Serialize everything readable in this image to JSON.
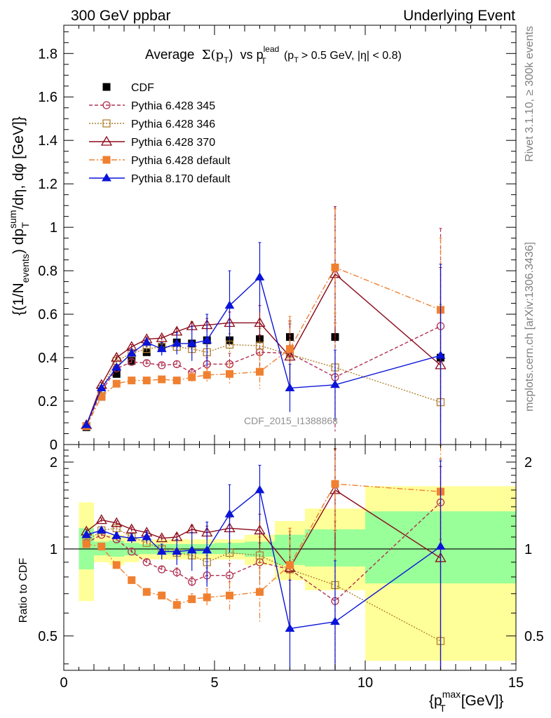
{
  "header": {
    "left": "300 GeV ppbar",
    "right": "Underlying Event"
  },
  "side_notes": {
    "rivet": "Rivet 3.1.10, ≥ 300k events",
    "mcplots": "mcplots.cern.ch [arXiv:1306.3436]"
  },
  "chart_data": [
    {
      "type": "line",
      "title": "Average Σ(pT) vs pT^lead (pT > 0.5 GeV, |η| < 0.8)",
      "title_parts": {
        "main": "Average",
        "sigma": "Σ(p",
        "sub_T": "T",
        "close": ")",
        "vs": "vs p",
        "lead_sup": "lead",
        "cut": "(p",
        "cut_rest": "> 0.5 GeV, |η| < 0.8)"
      },
      "ylabel": "{(1/Nevents) dpT^sum/dη, dφ [GeV]}",
      "ylabel_parts": {
        "a": "{(1/N",
        "events": "events",
        "b": ") dp",
        "sum": "sum",
        "T": "T",
        "c": "/dη, dφ [GeV]}"
      },
      "watermark": "CDF_2015_I1388868",
      "xlim": [
        0,
        15
      ],
      "ylim": [
        0,
        1.93
      ],
      "y_ticks": [
        "0",
        "0.2",
        "0.4",
        "0.6",
        "0.8",
        "1",
        "1.2",
        "1.4",
        "1.6",
        "1.8"
      ],
      "y_tick_values": [
        0,
        0.2,
        0.4,
        0.6,
        0.8,
        1.0,
        1.2,
        1.4,
        1.6,
        1.8
      ],
      "legend_position": "top-left",
      "series": [
        {
          "name": "CDF",
          "color": "#000000",
          "marker": "filled-square",
          "line": "none",
          "x": [
            0.75,
            1.25,
            1.75,
            2.25,
            2.75,
            3.25,
            3.75,
            4.25,
            4.75,
            5.5,
            6.5,
            7.5,
            9.0,
            12.5
          ],
          "y": [
            0.08,
            0.22,
            0.325,
            0.385,
            0.425,
            0.45,
            0.47,
            0.465,
            0.48,
            0.48,
            0.485,
            0.495,
            0.495,
            0.4
          ]
        },
        {
          "name": "Pythia 6.428 345",
          "color": "#b03050",
          "marker": "open-circle",
          "line": "dashed",
          "x": [
            0.75,
            1.25,
            1.75,
            2.25,
            2.75,
            3.25,
            3.75,
            4.25,
            4.75,
            5.5,
            6.5,
            7.5,
            9.0,
            12.5
          ],
          "y": [
            0.085,
            0.245,
            0.35,
            0.38,
            0.375,
            0.365,
            0.37,
            0.33,
            0.37,
            0.37,
            0.425,
            0.42,
            0.31,
            0.545
          ],
          "err": [
            0.01,
            0.01,
            0.01,
            0.01,
            0.01,
            0.01,
            0.015,
            0.02,
            0.03,
            0.05,
            0.08,
            0.15,
            0.25,
            0.45
          ]
        },
        {
          "name": "Pythia 6.428 346",
          "color": "#b08030",
          "marker": "open-square",
          "line": "dotted",
          "x": [
            0.75,
            1.25,
            1.75,
            2.25,
            2.75,
            3.25,
            3.75,
            4.25,
            4.75,
            5.5,
            6.5,
            7.5,
            9.0,
            12.5
          ],
          "y": [
            0.085,
            0.255,
            0.385,
            0.42,
            0.44,
            0.45,
            0.45,
            0.44,
            0.425,
            0.46,
            0.455,
            0.415,
            0.355,
            0.195
          ],
          "err": [
            0.01,
            0.01,
            0.01,
            0.01,
            0.01,
            0.01,
            0.015,
            0.02,
            0.03,
            0.05,
            0.08,
            0.15,
            0.25,
            0.45
          ]
        },
        {
          "name": "Pythia 6.428 370",
          "color": "#8b0a1a",
          "marker": "open-triangle",
          "line": "solid",
          "x": [
            0.75,
            1.25,
            1.75,
            2.25,
            2.75,
            3.25,
            3.75,
            4.25,
            4.75,
            5.5,
            6.5,
            7.5,
            9.0,
            12.5
          ],
          "y": [
            0.09,
            0.275,
            0.4,
            0.45,
            0.485,
            0.49,
            0.52,
            0.545,
            0.55,
            0.56,
            0.56,
            0.405,
            0.785,
            0.365
          ],
          "err": [
            0.01,
            0.01,
            0.01,
            0.01,
            0.01,
            0.01,
            0.015,
            0.02,
            0.03,
            0.05,
            0.08,
            0.15,
            0.31,
            0.45
          ]
        },
        {
          "name": "Pythia 6.428 default",
          "color": "#f08030",
          "marker": "filled-square",
          "line": "dashdot",
          "x": [
            0.75,
            1.25,
            1.75,
            2.25,
            2.75,
            3.25,
            3.75,
            4.25,
            4.75,
            5.5,
            6.5,
            7.5,
            9.0,
            12.5
          ],
          "y": [
            0.085,
            0.22,
            0.28,
            0.295,
            0.295,
            0.3,
            0.295,
            0.31,
            0.32,
            0.325,
            0.335,
            0.44,
            0.815,
            0.62
          ],
          "err": [
            0.01,
            0.01,
            0.01,
            0.01,
            0.01,
            0.01,
            0.015,
            0.02,
            0.03,
            0.05,
            0.08,
            0.15,
            0.27,
            0.33
          ]
        },
        {
          "name": "Pythia 8.170 default",
          "color": "#0a14d8",
          "marker": "filled-triangle",
          "line": "solid",
          "x": [
            0.75,
            1.25,
            1.75,
            2.25,
            2.75,
            3.25,
            3.75,
            4.25,
            4.75,
            5.5,
            6.5,
            7.5,
            9.0,
            12.5
          ],
          "y": [
            0.09,
            0.26,
            0.355,
            0.42,
            0.47,
            0.44,
            0.465,
            0.465,
            0.48,
            0.64,
            0.77,
            0.26,
            0.275,
            0.41
          ],
          "err": [
            0.01,
            0.01,
            0.01,
            0.02,
            0.02,
            0.03,
            0.05,
            0.08,
            0.12,
            0.16,
            0.16,
            0.11,
            0.16,
            0.42
          ]
        }
      ]
    },
    {
      "type": "line",
      "ylabel": "Ratio to CDF",
      "xlabel": "{pT^max [GeV]}",
      "xlabel_parts": {
        "a": "{p",
        "max": "max",
        "T": "T",
        "b": "[GeV]}"
      },
      "xlim": [
        0,
        15
      ],
      "ylim": [
        0.38,
        2.3
      ],
      "x_ticks": [
        "0",
        "5",
        "10",
        "15"
      ],
      "x_tick_values": [
        0,
        5,
        10,
        15
      ],
      "y_ticks": [
        "0.5",
        "1",
        "2"
      ],
      "y_tick_values": [
        0.5,
        1,
        2
      ],
      "bands": {
        "yellow_color": "#ffff99",
        "green_color": "#99ff99",
        "bins": [
          {
            "x0": 0.5,
            "x1": 1.0,
            "y_lo": 0.66,
            "y_hi": 1.45,
            "g_lo": 0.85,
            "g_hi": 1.18
          },
          {
            "x0": 1.0,
            "x1": 1.5,
            "y_lo": 0.9,
            "y_hi": 1.12,
            "g_lo": 0.95,
            "g_hi": 1.06
          },
          {
            "x0": 1.5,
            "x1": 2.0,
            "y_lo": 0.88,
            "y_hi": 1.12,
            "g_lo": 0.94,
            "g_hi": 1.07
          },
          {
            "x0": 2.0,
            "x1": 2.5,
            "y_lo": 0.9,
            "y_hi": 1.1,
            "g_lo": 0.95,
            "g_hi": 1.05
          },
          {
            "x0": 2.5,
            "x1": 3.0,
            "y_lo": 0.92,
            "y_hi": 1.08,
            "g_lo": 0.96,
            "g_hi": 1.04
          },
          {
            "x0": 3.0,
            "x1": 3.5,
            "y_lo": 0.92,
            "y_hi": 1.08,
            "g_lo": 0.96,
            "g_hi": 1.04
          },
          {
            "x0": 3.5,
            "x1": 4.0,
            "y_lo": 0.92,
            "y_hi": 1.08,
            "g_lo": 0.96,
            "g_hi": 1.04
          },
          {
            "x0": 4.0,
            "x1": 4.5,
            "y_lo": 0.92,
            "y_hi": 1.08,
            "g_lo": 0.96,
            "g_hi": 1.04
          },
          {
            "x0": 4.5,
            "x1": 5.0,
            "y_lo": 0.92,
            "y_hi": 1.08,
            "g_lo": 0.96,
            "g_hi": 1.04
          },
          {
            "x0": 5.0,
            "x1": 6.0,
            "y_lo": 0.92,
            "y_hi": 1.08,
            "g_lo": 0.96,
            "g_hi": 1.05
          },
          {
            "x0": 6.0,
            "x1": 7.0,
            "y_lo": 0.88,
            "y_hi": 1.12,
            "g_lo": 0.94,
            "g_hi": 1.06
          },
          {
            "x0": 7.0,
            "x1": 8.0,
            "y_lo": 0.78,
            "y_hi": 1.25,
            "g_lo": 0.88,
            "g_hi": 1.12
          },
          {
            "x0": 8.0,
            "x1": 10.0,
            "y_lo": 0.72,
            "y_hi": 1.38,
            "g_lo": 0.87,
            "g_hi": 1.17
          },
          {
            "x0": 10.0,
            "x1": 15.0,
            "y_lo": 0.41,
            "y_hi": 1.65,
            "g_lo": 0.76,
            "g_hi": 1.35
          }
        ]
      },
      "series": [
        {
          "name": "Pythia 6.428 345",
          "color": "#b03050",
          "marker": "open-circle",
          "line": "dashed",
          "x": [
            0.75,
            1.25,
            1.75,
            2.25,
            2.75,
            3.25,
            3.75,
            4.25,
            4.75,
            5.5,
            6.5,
            7.5,
            9.0,
            12.5
          ],
          "y": [
            1.05,
            1.12,
            1.08,
            0.98,
            0.9,
            0.85,
            0.83,
            0.77,
            0.81,
            0.81,
            0.9,
            0.85,
            0.66,
            1.45
          ],
          "err": [
            0.02,
            0.02,
            0.02,
            0.02,
            0.02,
            0.02,
            0.03,
            0.03,
            0.05,
            0.08,
            0.15,
            0.3,
            0.5,
            0.6
          ]
        },
        {
          "name": "Pythia 6.428 346",
          "color": "#b08030",
          "marker": "open-square",
          "line": "dotted",
          "x": [
            0.75,
            1.25,
            1.75,
            2.25,
            2.75,
            3.25,
            3.75,
            4.25,
            4.75,
            5.5,
            6.5,
            7.5,
            9.0,
            12.5
          ],
          "y": [
            1.06,
            1.16,
            1.18,
            1.1,
            1.05,
            1.0,
            0.97,
            0.95,
            0.9,
            0.97,
            0.95,
            0.85,
            0.75,
            0.48
          ],
          "err": [
            0.02,
            0.02,
            0.02,
            0.02,
            0.02,
            0.02,
            0.03,
            0.03,
            0.05,
            0.08,
            0.15,
            0.3,
            0.5,
            0.6
          ]
        },
        {
          "name": "Pythia 6.428 370",
          "color": "#8b0a1a",
          "marker": "open-triangle",
          "line": "solid",
          "x": [
            0.75,
            1.25,
            1.75,
            2.25,
            2.75,
            3.25,
            3.75,
            4.25,
            4.75,
            5.5,
            6.5,
            7.5,
            9.0,
            12.5
          ],
          "y": [
            1.15,
            1.26,
            1.23,
            1.17,
            1.14,
            1.09,
            1.1,
            1.17,
            1.14,
            1.18,
            1.16,
            0.86,
            1.6,
            0.93
          ],
          "err": [
            0.02,
            0.02,
            0.02,
            0.02,
            0.02,
            0.02,
            0.03,
            0.04,
            0.06,
            0.1,
            0.16,
            0.32,
            0.62,
            1.0
          ]
        },
        {
          "name": "Pythia 6.428 default",
          "color": "#f08030",
          "marker": "filled-square",
          "line": "dashdot",
          "x": [
            0.75,
            1.25,
            1.75,
            2.25,
            2.75,
            3.25,
            3.75,
            4.25,
            4.75,
            5.5,
            6.5,
            7.5,
            9.0,
            12.5
          ],
          "y": [
            1.04,
            1.02,
            0.88,
            0.78,
            0.71,
            0.69,
            0.64,
            0.67,
            0.68,
            0.69,
            0.71,
            0.88,
            1.68,
            1.58
          ],
          "err": [
            0.02,
            0.02,
            0.02,
            0.02,
            0.02,
            0.02,
            0.03,
            0.03,
            0.05,
            0.08,
            0.15,
            0.3,
            0.55,
            0.7
          ]
        },
        {
          "name": "Pythia 8.170 default",
          "color": "#0a14d8",
          "marker": "filled-triangle",
          "line": "solid",
          "x": [
            0.75,
            1.25,
            1.75,
            2.25,
            2.75,
            3.25,
            3.75,
            4.25,
            4.75,
            5.5,
            6.5,
            7.5,
            9.0,
            12.5
          ],
          "y": [
            1.12,
            1.16,
            1.11,
            1.09,
            1.1,
            0.98,
            0.98,
            0.99,
            0.99,
            1.32,
            1.6,
            0.53,
            0.56,
            1.02
          ],
          "err": [
            0.02,
            0.02,
            0.03,
            0.04,
            0.05,
            0.06,
            0.1,
            0.15,
            0.25,
            0.35,
            0.35,
            0.25,
            0.35,
            1.0
          ]
        }
      ]
    }
  ]
}
